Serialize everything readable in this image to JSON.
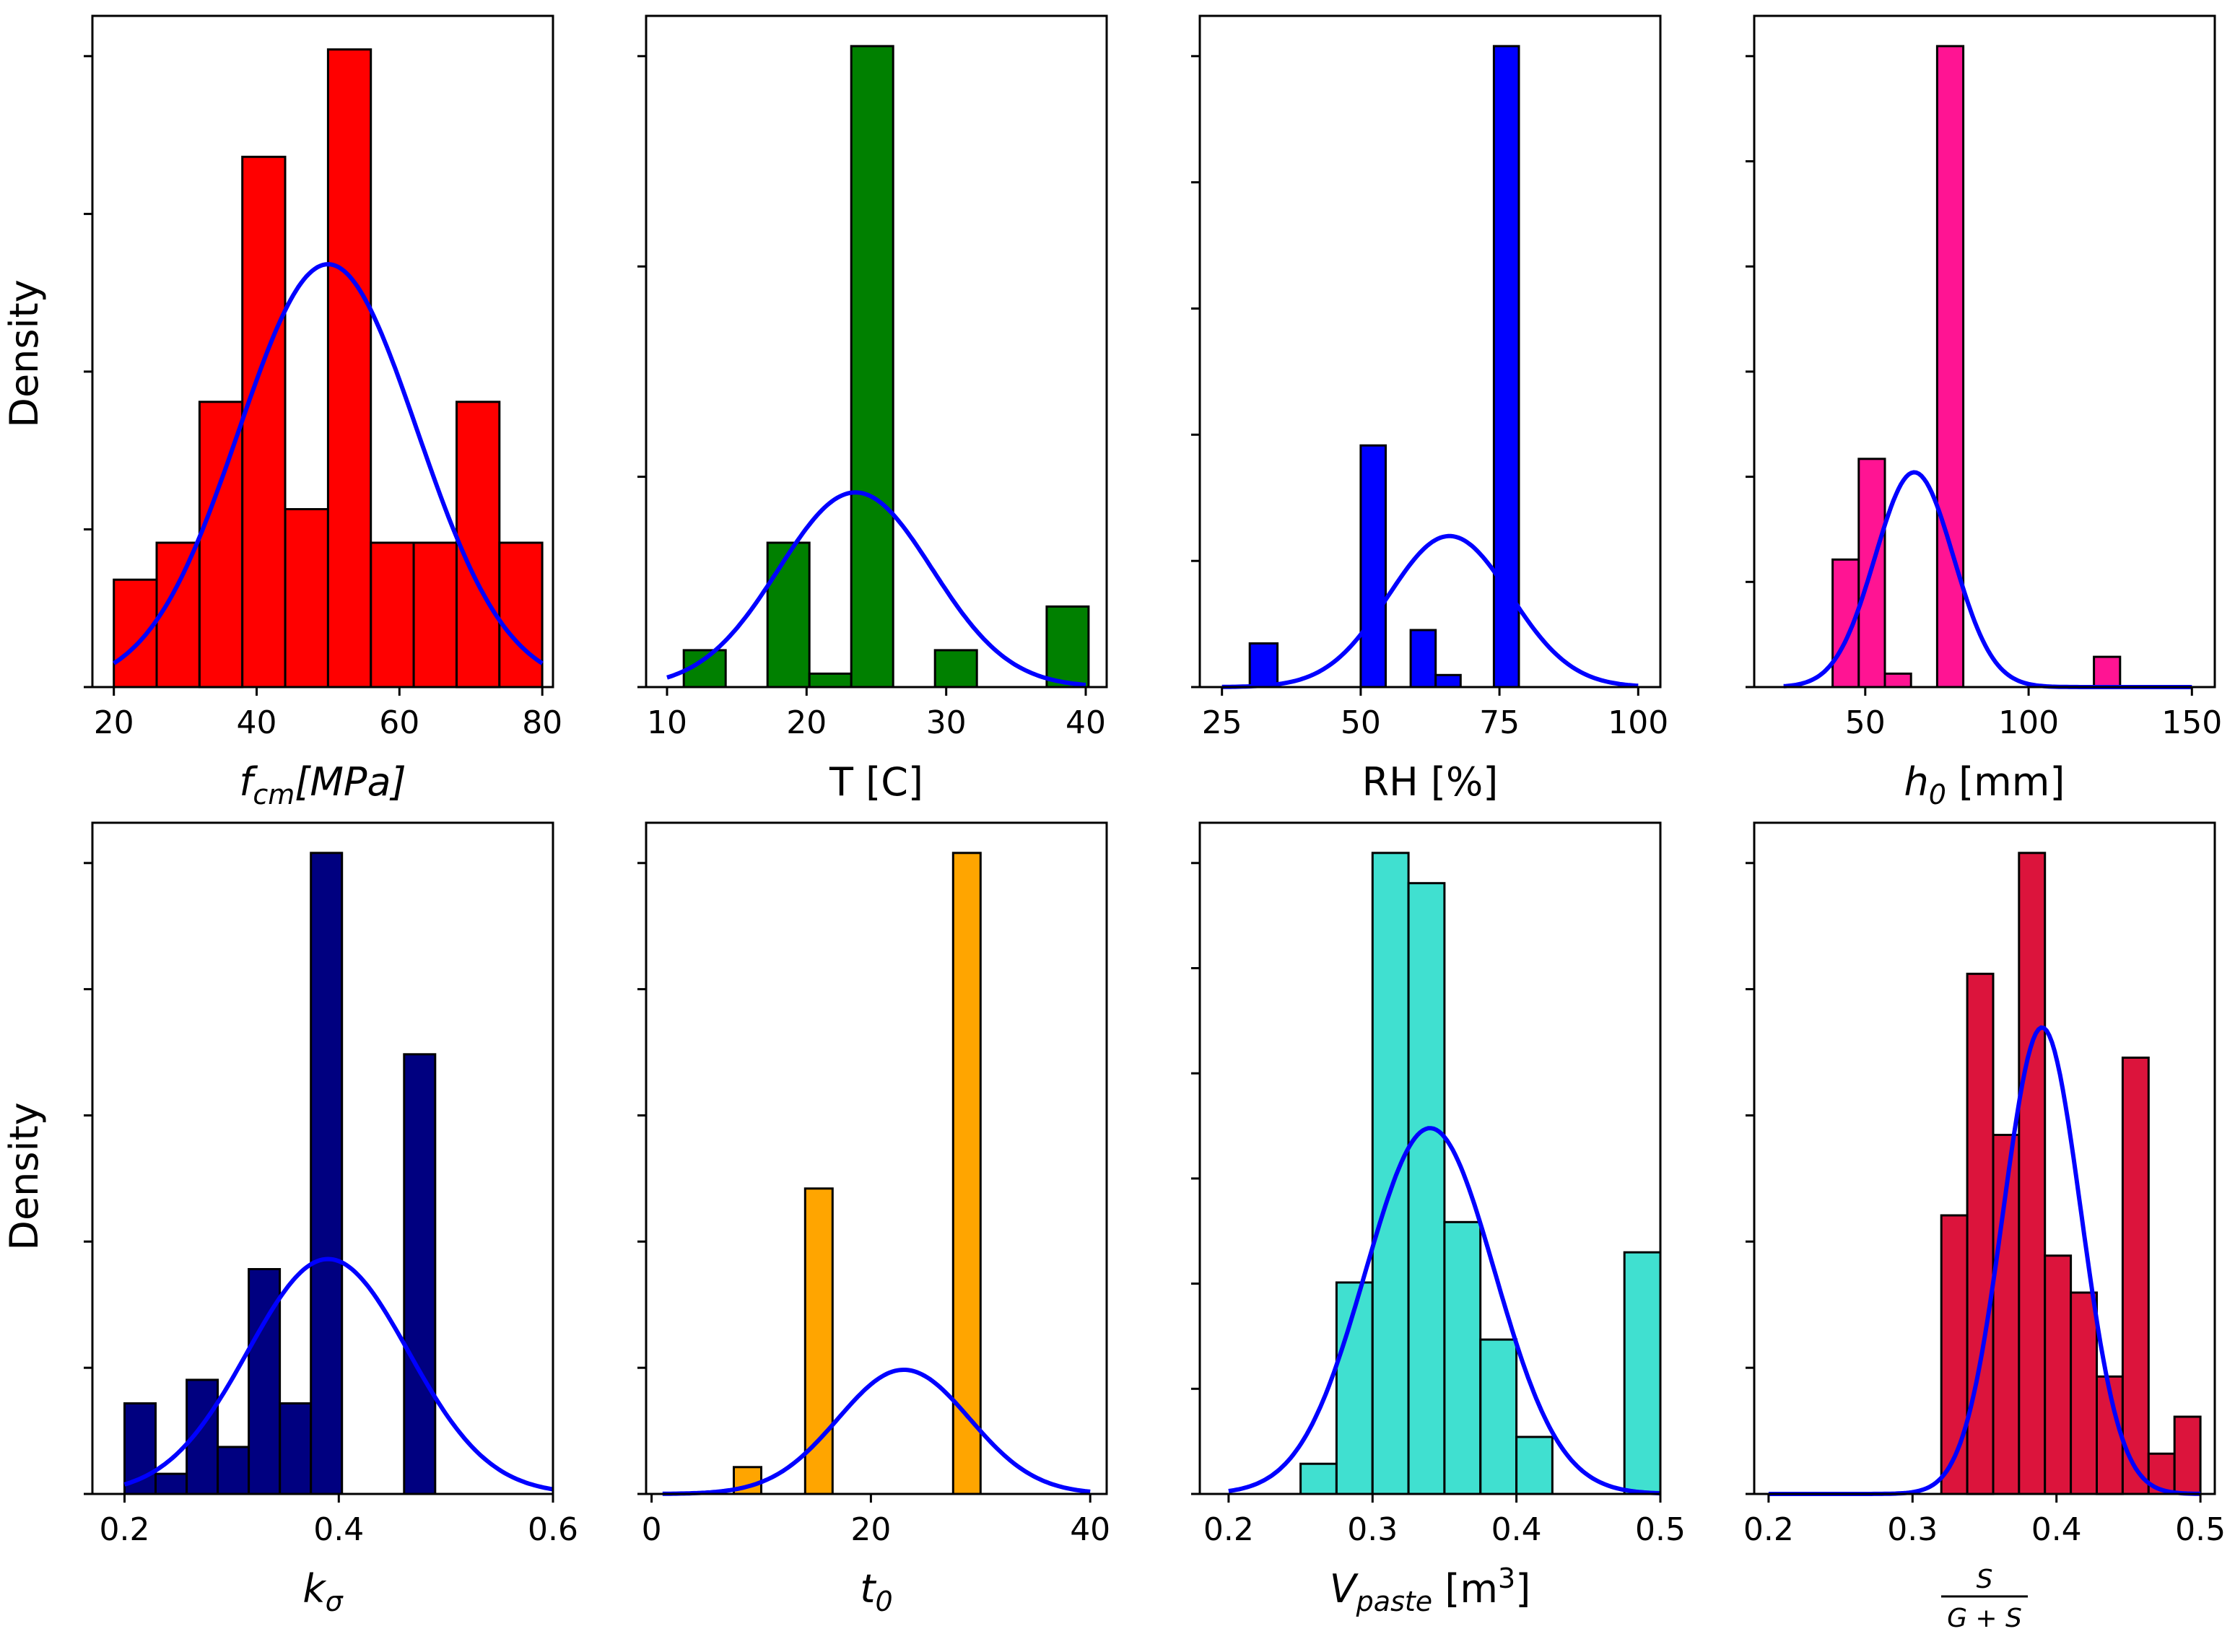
{
  "figure": {
    "ylabel": "Density"
  },
  "chart_data": [
    {
      "type": "bar",
      "panel": "fcm",
      "xlabel": "f_cm[MPa]",
      "xlabel_parts": {
        "main": "f",
        "sub": "cm",
        "rest": "[MPa]"
      },
      "xticks": [
        20,
        40,
        60,
        80
      ],
      "xlim": [
        17,
        81.5
      ],
      "ylim": [
        0,
        1
      ],
      "bar_color": "#ff0000",
      "bins": [
        [
          20,
          26
        ],
        [
          26,
          32
        ],
        [
          32,
          38
        ],
        [
          38,
          44
        ],
        [
          44,
          50
        ],
        [
          50,
          56
        ],
        [
          56,
          62
        ],
        [
          62,
          68
        ],
        [
          68,
          74
        ],
        [
          74,
          80
        ]
      ],
      "values": [
        0.16,
        0.215,
        0.425,
        0.79,
        0.265,
        0.95,
        0.215,
        0.215,
        0.425,
        0.215
      ],
      "normal_fit": {
        "mean": 50,
        "std": 12.5,
        "peak": 0.63,
        "range": [
          20,
          80
        ]
      },
      "yticks_count": 5
    },
    {
      "type": "bar",
      "panel": "T",
      "xlabel": "T [C]",
      "xticks": [
        10,
        20,
        30,
        40
      ],
      "xlim": [
        8.5,
        41.5
      ],
      "ylim": [
        0,
        1
      ],
      "bar_color": "#008000",
      "bins": [
        [
          11.2,
          14.2
        ],
        [
          17.2,
          20.2
        ],
        [
          20.2,
          23.2
        ],
        [
          23.2,
          26.2
        ],
        [
          29.2,
          32.2
        ],
        [
          37.2,
          40.2
        ]
      ],
      "values": [
        0.055,
        0.215,
        0.02,
        0.955,
        0.055,
        0.12
      ],
      "normal_fit": {
        "mean": 23.5,
        "std": 5.5,
        "peak": 0.29,
        "range": [
          10,
          40
        ]
      },
      "yticks_count": 4
    },
    {
      "type": "bar",
      "panel": "RH",
      "xlabel": "RH [%]",
      "xticks": [
        25,
        50,
        75,
        100
      ],
      "xlim": [
        21,
        104
      ],
      "ylim": [
        0,
        1
      ],
      "bar_color": "#0000ff",
      "bins": [
        [
          30,
          35
        ],
        [
          50,
          54.5
        ],
        [
          59,
          63.5
        ],
        [
          63.5,
          68
        ],
        [
          74,
          78.5
        ]
      ],
      "values": [
        0.065,
        0.36,
        0.085,
        0.018,
        0.955
      ],
      "normal_fit": {
        "mean": 66,
        "std": 11,
        "peak": 0.225,
        "range": [
          25,
          100
        ]
      },
      "yticks_count": 6
    },
    {
      "type": "bar",
      "panel": "h0",
      "xlabel": "h_0 [mm]",
      "xlabel_parts": {
        "main": "h",
        "sub": "0",
        "rest": " [mm]"
      },
      "xticks": [
        50,
        100,
        150
      ],
      "xlim": [
        16,
        157
      ],
      "ylim": [
        0,
        1
      ],
      "bar_color": "#ff1493",
      "bins": [
        [
          40,
          48
        ],
        [
          48,
          56
        ],
        [
          56,
          64
        ],
        [
          72,
          80
        ],
        [
          120,
          128
        ]
      ],
      "values": [
        0.19,
        0.34,
        0.02,
        0.955,
        0.045
      ],
      "normal_fit": {
        "mean": 65,
        "std": 12,
        "peak": 0.32,
        "range": [
          25,
          150
        ]
      },
      "yticks_count": 7
    },
    {
      "type": "bar",
      "panel": "ksigma",
      "xlabel": "k_σ",
      "xlabel_parts": {
        "main": "k",
        "sub": "σ",
        "rest": ""
      },
      "xticks": [
        0.2,
        0.4,
        0.6
      ],
      "xlim": [
        0.17,
        0.6
      ],
      "ylim": [
        0,
        1
      ],
      "bar_color": "#000080",
      "bins": [
        [
          0.2,
          0.229
        ],
        [
          0.229,
          0.258
        ],
        [
          0.258,
          0.287
        ],
        [
          0.287,
          0.316
        ],
        [
          0.316,
          0.345
        ],
        [
          0.345,
          0.374
        ],
        [
          0.374,
          0.403
        ],
        [
          0.461,
          0.49
        ]
      ],
      "values": [
        0.135,
        0.03,
        0.17,
        0.07,
        0.335,
        0.135,
        0.955,
        0.655
      ],
      "normal_fit": {
        "mean": 0.39,
        "std": 0.075,
        "peak": 0.35,
        "range": [
          0.2,
          0.6
        ]
      },
      "yticks_count": 6
    },
    {
      "type": "bar",
      "panel": "t0",
      "xlabel": "t_0",
      "xlabel_parts": {
        "main": "t",
        "sub": "0",
        "rest": ""
      },
      "xticks": [
        0,
        20,
        40
      ],
      "xlim": [
        -0.5,
        41.5
      ],
      "ylim": [
        0,
        1
      ],
      "bar_color": "#ffa500",
      "bins": [
        [
          7.5,
          10
        ],
        [
          14,
          16.5
        ],
        [
          27.5,
          30
        ]
      ],
      "values": [
        0.04,
        0.455,
        0.955
      ],
      "normal_fit": {
        "mean": 23,
        "std": 6,
        "peak": 0.185,
        "range": [
          1,
          40
        ]
      },
      "yticks_count": 6
    },
    {
      "type": "bar",
      "panel": "Vpaste",
      "xlabel": "V_paste [m^3]",
      "xlabel_parts": {
        "main": "V",
        "sub": "paste",
        "rest": " [m",
        "sup": "3",
        "end": "]"
      },
      "xticks": [
        0.2,
        0.3,
        0.4,
        0.5
      ],
      "xlim": [
        0.18,
        0.5
      ],
      "ylim": [
        0,
        1
      ],
      "bar_color": "#40e0d0",
      "bins": [
        [
          0.25,
          0.275
        ],
        [
          0.275,
          0.3
        ],
        [
          0.3,
          0.325
        ],
        [
          0.325,
          0.35
        ],
        [
          0.35,
          0.375
        ],
        [
          0.375,
          0.4
        ],
        [
          0.4,
          0.425
        ],
        [
          0.475,
          0.5
        ]
      ],
      "values": [
        0.045,
        0.315,
        0.955,
        0.91,
        0.405,
        0.23,
        0.085,
        0.36
      ],
      "normal_fit": {
        "mean": 0.34,
        "std": 0.045,
        "peak": 0.545,
        "range": [
          0.2,
          0.5
        ]
      },
      "yticks_count": 7
    },
    {
      "type": "bar",
      "panel": "SGS",
      "xlabel": "S / (G + S)",
      "xlabel_parts": {
        "num": "S",
        "den": "G + S"
      },
      "xticks": [
        0.2,
        0.3,
        0.4,
        0.5
      ],
      "xlim": [
        0.19,
        0.51
      ],
      "ylim": [
        0,
        1
      ],
      "bar_color": "#dc143c",
      "bins": [
        [
          0.32,
          0.338
        ],
        [
          0.338,
          0.356
        ],
        [
          0.356,
          0.374
        ],
        [
          0.374,
          0.392
        ],
        [
          0.392,
          0.41
        ],
        [
          0.41,
          0.428
        ],
        [
          0.428,
          0.446
        ],
        [
          0.446,
          0.464
        ],
        [
          0.464,
          0.482
        ],
        [
          0.482,
          0.5
        ]
      ],
      "values": [
        0.415,
        0.775,
        0.535,
        0.955,
        0.355,
        0.3,
        0.175,
        0.65,
        0.06,
        0.115
      ],
      "normal_fit": {
        "mean": 0.39,
        "std": 0.027,
        "peak": 0.695,
        "range": [
          0.2,
          0.5
        ]
      },
      "yticks_count": 6
    }
  ]
}
